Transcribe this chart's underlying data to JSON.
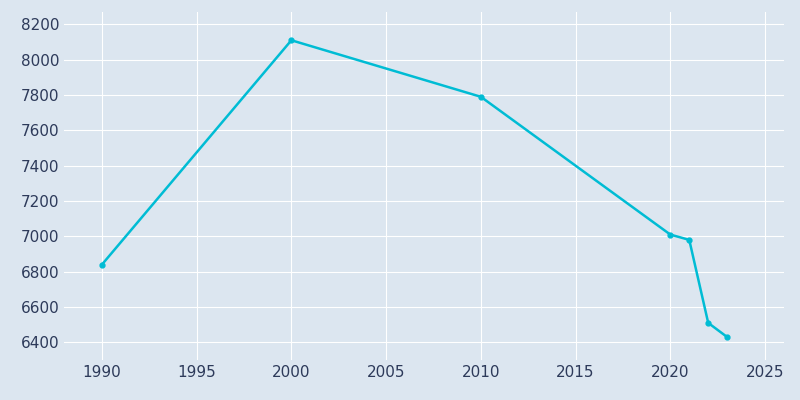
{
  "years": [
    1990,
    2000,
    2010,
    2020,
    2021,
    2022,
    2023
  ],
  "population": [
    6840,
    8110,
    7790,
    7010,
    6980,
    6510,
    6430
  ],
  "line_color": "#00bcd4",
  "background_color": "#dce6f0",
  "plot_bg_color": "#dce6f0",
  "grid_color": "#ffffff",
  "xlabel": "",
  "ylabel": "",
  "xlim": [
    1988,
    2026
  ],
  "ylim": [
    6300,
    8270
  ],
  "yticks": [
    6400,
    6600,
    6800,
    7000,
    7200,
    7400,
    7600,
    7800,
    8000,
    8200
  ],
  "xticks": [
    1990,
    1995,
    2000,
    2005,
    2010,
    2015,
    2020,
    2025
  ],
  "tick_label_color": "#2d3a5a",
  "tick_fontsize": 11,
  "line_width": 1.8,
  "marker": "o",
  "marker_size": 3.5
}
